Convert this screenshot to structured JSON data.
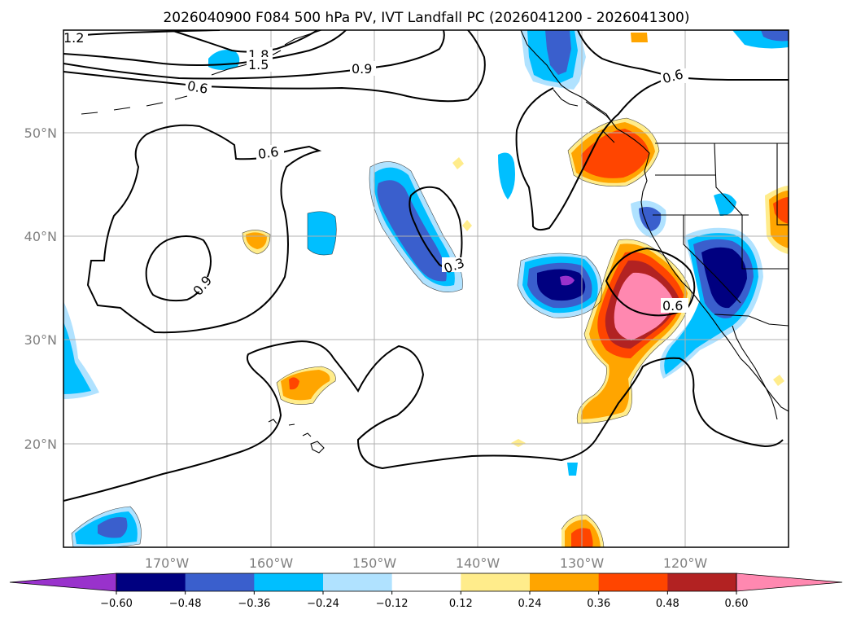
{
  "title": "2026040900 F084 500 hPa PV, IVT Landfall PC (2026041200 - 2026041300)",
  "lat_labels": [
    "50°N",
    "40°N",
    "30°N",
    "20°N"
  ],
  "lon_labels": [
    "170°W",
    "160°W",
    "150°W",
    "140°W",
    "130°W",
    "120°W"
  ],
  "colorbar": {
    "ticks": [
      "−0.60",
      "−0.48",
      "−0.36",
      "−0.24",
      "−0.12",
      "0.12",
      "0.24",
      "0.36",
      "0.48",
      "0.60"
    ],
    "under_color": "#9932cc",
    "over_color": "#ff88b0",
    "colors": [
      "#000080",
      "#3a5fcd",
      "#00bfff",
      "#b0e2ff",
      "#ffffff",
      "#ffec8b",
      "#ffa500",
      "#ff4500",
      "#b22222"
    ]
  },
  "contour_labels": [
    "1.2",
    "1.8",
    "1.5",
    "0.9",
    "0.6",
    "0.6",
    "0.9",
    "0.3",
    "0.6",
    "0.6"
  ],
  "chart_data": {
    "type": "heatmap",
    "title": "2026040900 F084 500 hPa PV, IVT Landfall PC (2026041200 - 2026041300)",
    "projection": "PlateCarree",
    "lon_range": [
      -180,
      -110
    ],
    "lat_range": [
      10,
      60
    ],
    "filled_field": "IVT Landfall PC",
    "contour_field": "500 hPa PV",
    "contour_levels": [
      0.3,
      0.6,
      0.9,
      1.2,
      1.5,
      1.8
    ],
    "color_levels": [
      -0.6,
      -0.48,
      -0.36,
      -0.24,
      -0.12,
      0.12,
      0.24,
      0.36,
      0.48,
      0.6
    ],
    "grid": true,
    "colorbar": "bottom, horizontal, extend both"
  }
}
